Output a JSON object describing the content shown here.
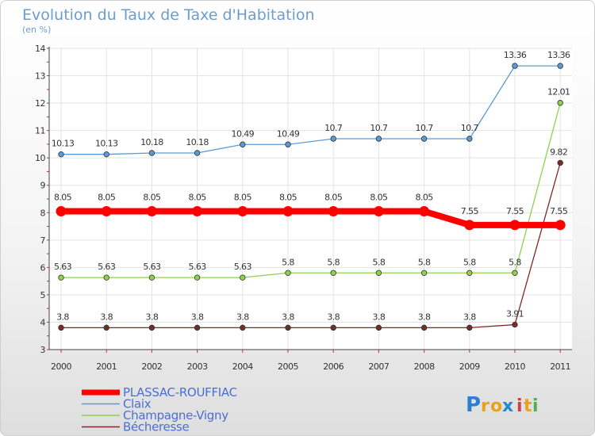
{
  "chart_data": {
    "type": "line",
    "title": "Evolution du Taux de Taxe d'Habitation",
    "subtitle": "(en %)",
    "xlabel": "",
    "ylabel": "",
    "categories": [
      "2000",
      "2001",
      "2002",
      "2003",
      "2004",
      "2005",
      "2006",
      "2007",
      "2008",
      "2009",
      "2010",
      "2011"
    ],
    "ylim": [
      3,
      14
    ],
    "yticks": [
      3,
      4,
      5,
      6,
      7,
      8,
      9,
      10,
      11,
      12,
      13,
      14
    ],
    "grid": true,
    "legend_position": "bottom-left",
    "series": [
      {
        "name": "PLASSAC-ROUFFIAC",
        "color": "#ff0000",
        "values": [
          8.05,
          8.05,
          8.05,
          8.05,
          8.05,
          8.05,
          8.05,
          8.05,
          8.05,
          7.55,
          7.55,
          7.55
        ],
        "labels": [
          "8.05",
          "8.05",
          "8.05",
          "8.05",
          "8.05",
          "8.05",
          "8.05",
          "8.05",
          "8.05",
          "7.55",
          "7.55",
          "7.55"
        ],
        "emphasis": true
      },
      {
        "name": "Claix",
        "color": "#5b9bd5",
        "values": [
          10.13,
          10.13,
          10.18,
          10.18,
          10.49,
          10.49,
          10.7,
          10.7,
          10.7,
          10.7,
          13.36,
          13.36
        ],
        "labels": [
          "10.13",
          "10.13",
          "10.18",
          "10.18",
          "10.49",
          "10.49",
          "10.7",
          "10.7",
          "10.7",
          "10.7",
          "13.36",
          "13.36"
        ]
      },
      {
        "name": "Champagne-Vigny",
        "color": "#8fd14f",
        "values": [
          5.63,
          5.63,
          5.63,
          5.63,
          5.63,
          5.8,
          5.8,
          5.8,
          5.8,
          5.8,
          5.8,
          12.01
        ],
        "labels": [
          "5.63",
          "5.63",
          "5.63",
          "5.63",
          "5.63",
          "5.8",
          "5.8",
          "5.8",
          "5.8",
          "5.8",
          "5.8",
          "12.01"
        ]
      },
      {
        "name": "Bécheresse",
        "color": "#7b2a2a",
        "values": [
          3.8,
          3.8,
          3.8,
          3.8,
          3.8,
          3.8,
          3.8,
          3.8,
          3.8,
          3.8,
          3.91,
          9.82
        ],
        "labels": [
          "3.8",
          "3.8",
          "3.8",
          "3.8",
          "3.8",
          "3.8",
          "3.8",
          "3.8",
          "3.8",
          "3.8",
          "3.91",
          "9.82"
        ]
      }
    ]
  },
  "branding": {
    "logo_letters": [
      "P",
      "r",
      "o",
      "x",
      "i",
      "t",
      "i"
    ],
    "logo_colors": [
      "#2f7fd1",
      "#e8a31a",
      "#e8a31a",
      "#1f8ad6",
      "#d04040",
      "#e8a31a",
      "#4fb050"
    ]
  }
}
